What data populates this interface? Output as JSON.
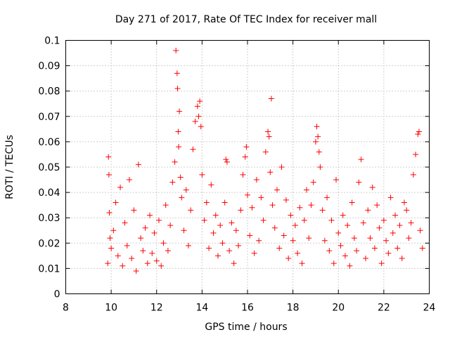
{
  "chart_data": {
    "type": "scatter",
    "title": "Day 271 of 2017, Rate Of TEC Index for receiver mall",
    "xlabel": "GPS time / hours",
    "ylabel": "ROTI / TECUs",
    "xlim": [
      8,
      24
    ],
    "ylim": [
      0,
      0.1
    ],
    "xticks": [
      8,
      10,
      12,
      14,
      16,
      18,
      20,
      22,
      24
    ],
    "xtick_labels": [
      "8",
      "10",
      "12",
      "14",
      "16",
      "18",
      "20",
      "22",
      "24"
    ],
    "yticks": [
      0,
      0.01,
      0.02,
      0.03,
      0.04,
      0.05,
      0.06,
      0.07,
      0.08,
      0.09,
      0.1
    ],
    "ytick_labels": [
      "0",
      "0.01",
      "0.02",
      "0.03",
      "0.04",
      "0.05",
      "0.06",
      "0.07",
      "0.08",
      "0.09",
      "0.1"
    ],
    "grid": true,
    "marker": "+",
    "color": "#ff0000",
    "series": [
      {
        "x": [
          9.85,
          9.88,
          9.9,
          9.92,
          9.95,
          10.0,
          10.1,
          10.2,
          10.3,
          10.4,
          10.5,
          10.6,
          10.7,
          10.8,
          10.9,
          11.0,
          11.1,
          11.2,
          11.3,
          11.4,
          11.5,
          11.6,
          11.7,
          11.8,
          11.9,
          12.0,
          12.1,
          12.2,
          12.3,
          12.4,
          12.5,
          12.6,
          12.7,
          12.8,
          12.85,
          12.9,
          12.92,
          12.95,
          12.97,
          13.0,
          13.05,
          13.1,
          13.2,
          13.3,
          13.4,
          13.5,
          13.6,
          13.7,
          13.8,
          13.85,
          13.9,
          13.95,
          14.0,
          14.1,
          14.2,
          14.3,
          14.4,
          14.5,
          14.6,
          14.7,
          14.8,
          14.9,
          15.0,
          15.05,
          15.1,
          15.2,
          15.3,
          15.4,
          15.5,
          15.6,
          15.7,
          15.8,
          15.9,
          15.95,
          16.0,
          16.1,
          16.2,
          16.3,
          16.4,
          16.5,
          16.6,
          16.7,
          16.8,
          16.9,
          16.95,
          17.0,
          17.05,
          17.1,
          17.2,
          17.3,
          17.4,
          17.5,
          17.6,
          17.7,
          17.8,
          17.9,
          18.0,
          18.1,
          18.2,
          18.3,
          18.4,
          18.5,
          18.6,
          18.7,
          18.8,
          18.9,
          19.0,
          19.05,
          19.1,
          19.15,
          19.2,
          19.3,
          19.4,
          19.5,
          19.6,
          19.7,
          19.8,
          19.9,
          20.0,
          20.1,
          20.2,
          20.3,
          20.4,
          20.5,
          20.6,
          20.7,
          20.8,
          20.9,
          21.0,
          21.1,
          21.2,
          21.3,
          21.4,
          21.5,
          21.6,
          21.7,
          21.8,
          21.9,
          22.0,
          22.1,
          22.2,
          22.3,
          22.4,
          22.5,
          22.6,
          22.7,
          22.8,
          22.9,
          23.0,
          23.1,
          23.2,
          23.3,
          23.4,
          23.5,
          23.55,
          23.6,
          23.7
        ],
        "y": [
          0.012,
          0.054,
          0.047,
          0.032,
          0.022,
          0.018,
          0.025,
          0.036,
          0.015,
          0.042,
          0.011,
          0.028,
          0.019,
          0.045,
          0.014,
          0.033,
          0.009,
          0.051,
          0.022,
          0.017,
          0.026,
          0.012,
          0.031,
          0.016,
          0.024,
          0.013,
          0.029,
          0.011,
          0.02,
          0.035,
          0.017,
          0.027,
          0.044,
          0.052,
          0.096,
          0.087,
          0.081,
          0.064,
          0.058,
          0.072,
          0.046,
          0.038,
          0.025,
          0.041,
          0.019,
          0.033,
          0.057,
          0.068,
          0.074,
          0.07,
          0.076,
          0.066,
          0.047,
          0.029,
          0.036,
          0.018,
          0.043,
          0.024,
          0.031,
          0.015,
          0.027,
          0.02,
          0.036,
          0.053,
          0.052,
          0.017,
          0.028,
          0.012,
          0.025,
          0.019,
          0.033,
          0.047,
          0.054,
          0.058,
          0.039,
          0.023,
          0.034,
          0.016,
          0.045,
          0.021,
          0.038,
          0.029,
          0.056,
          0.064,
          0.062,
          0.048,
          0.077,
          0.035,
          0.026,
          0.041,
          0.018,
          0.05,
          0.023,
          0.037,
          0.014,
          0.031,
          0.021,
          0.027,
          0.016,
          0.034,
          0.012,
          0.029,
          0.041,
          0.022,
          0.035,
          0.044,
          0.06,
          0.066,
          0.062,
          0.056,
          0.05,
          0.033,
          0.021,
          0.038,
          0.017,
          0.029,
          0.012,
          0.045,
          0.024,
          0.019,
          0.031,
          0.015,
          0.027,
          0.011,
          0.036,
          0.022,
          0.017,
          0.044,
          0.053,
          0.028,
          0.014,
          0.033,
          0.022,
          0.042,
          0.018,
          0.035,
          0.026,
          0.012,
          0.029,
          0.021,
          0.016,
          0.038,
          0.024,
          0.031,
          0.018,
          0.027,
          0.014,
          0.036,
          0.033,
          0.022,
          0.028,
          0.047,
          0.055,
          0.063,
          0.064,
          0.025,
          0.018
        ]
      }
    ]
  }
}
